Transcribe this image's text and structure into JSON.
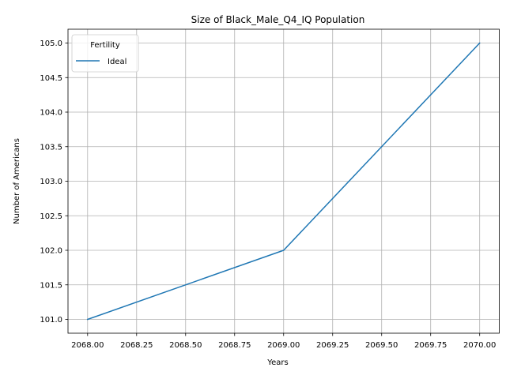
{
  "chart_data": {
    "type": "line",
    "title": "Size of Black_Male_Q4_IQ Population",
    "xlabel": "Years",
    "ylabel": "Number of Americans",
    "xlim": [
      2067.9,
      2070.1
    ],
    "ylim": [
      100.8,
      105.2
    ],
    "x_ticks": [
      "2068.00",
      "2068.25",
      "2068.50",
      "2068.75",
      "2069.00",
      "2069.25",
      "2069.50",
      "2069.75",
      "2070.00"
    ],
    "x_tick_values": [
      2068.0,
      2068.25,
      2068.5,
      2068.75,
      2069.0,
      2069.25,
      2069.5,
      2069.75,
      2070.0
    ],
    "y_ticks": [
      "101.0",
      "101.5",
      "102.0",
      "102.5",
      "103.0",
      "103.5",
      "104.0",
      "104.5",
      "105.0"
    ],
    "y_tick_values": [
      101.0,
      101.5,
      102.0,
      102.5,
      103.0,
      103.5,
      104.0,
      104.5,
      105.0
    ],
    "grid": true,
    "legend": {
      "title": "Fertility",
      "placement": "top-left"
    },
    "series": [
      {
        "name": "Ideal",
        "color": "#1f77b4",
        "x": [
          2068,
          2069,
          2070
        ],
        "y": [
          101,
          102,
          105
        ]
      }
    ]
  }
}
